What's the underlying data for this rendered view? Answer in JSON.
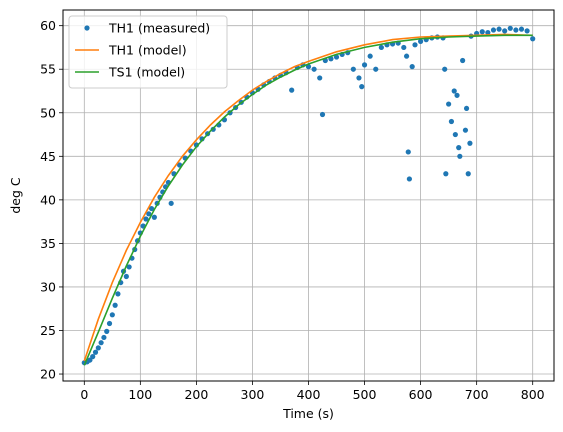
{
  "chart_data": {
    "type": "line",
    "xlabel": "Time (s)",
    "ylabel": "deg C",
    "xlim": [
      -38,
      838
    ],
    "ylim": [
      19.2,
      61.8
    ],
    "xticks": [
      0,
      100,
      200,
      300,
      400,
      500,
      600,
      700,
      800
    ],
    "yticks": [
      20,
      25,
      30,
      35,
      40,
      45,
      50,
      55,
      60
    ],
    "grid": true,
    "legend_position": "upper-left",
    "colors": {
      "measured": "#1f77b4",
      "th1_model": "#ff7f0e",
      "ts1_model": "#2ca02c",
      "grid": "#b0b0b0"
    },
    "series": [
      {
        "name": "TH1 (measured)",
        "style": "markers",
        "points": [
          [
            0,
            21.3
          ],
          [
            5,
            21.4
          ],
          [
            10,
            21.6
          ],
          [
            15,
            22.0
          ],
          [
            20,
            22.5
          ],
          [
            25,
            23.0
          ],
          [
            30,
            23.6
          ],
          [
            35,
            24.2
          ],
          [
            40,
            24.9
          ],
          [
            45,
            25.8
          ],
          [
            50,
            26.8
          ],
          [
            55,
            27.9
          ],
          [
            60,
            29.2
          ],
          [
            65,
            30.5
          ],
          [
            70,
            31.8
          ],
          [
            75,
            31.2
          ],
          [
            80,
            32.3
          ],
          [
            85,
            33.3
          ],
          [
            90,
            34.3
          ],
          [
            95,
            35.3
          ],
          [
            100,
            36.2
          ],
          [
            105,
            37.0
          ],
          [
            110,
            37.8
          ],
          [
            115,
            38.4
          ],
          [
            120,
            39.0
          ],
          [
            125,
            38.0
          ],
          [
            130,
            39.6
          ],
          [
            135,
            40.3
          ],
          [
            140,
            40.9
          ],
          [
            145,
            41.5
          ],
          [
            150,
            42.0
          ],
          [
            155,
            39.6
          ],
          [
            160,
            43.0
          ],
          [
            170,
            44.0
          ],
          [
            180,
            44.8
          ],
          [
            190,
            45.6
          ],
          [
            200,
            46.3
          ],
          [
            210,
            47.0
          ],
          [
            220,
            47.6
          ],
          [
            230,
            48.1
          ],
          [
            240,
            48.6
          ],
          [
            250,
            49.2
          ],
          [
            260,
            50.0
          ],
          [
            270,
            50.6
          ],
          [
            280,
            51.2
          ],
          [
            290,
            51.8
          ],
          [
            300,
            52.3
          ],
          [
            310,
            52.7
          ],
          [
            320,
            53.2
          ],
          [
            330,
            53.6
          ],
          [
            340,
            54.0
          ],
          [
            350,
            54.3
          ],
          [
            360,
            54.6
          ],
          [
            370,
            52.6
          ],
          [
            380,
            55.2
          ],
          [
            390,
            55.5
          ],
          [
            400,
            55.3
          ],
          [
            410,
            55.0
          ],
          [
            420,
            54.0
          ],
          [
            425,
            49.8
          ],
          [
            430,
            56.0
          ],
          [
            440,
            56.2
          ],
          [
            450,
            56.4
          ],
          [
            460,
            56.7
          ],
          [
            470,
            56.9
          ],
          [
            480,
            55.0
          ],
          [
            490,
            54.0
          ],
          [
            495,
            53.0
          ],
          [
            500,
            55.5
          ],
          [
            510,
            56.5
          ],
          [
            520,
            55.0
          ],
          [
            530,
            57.5
          ],
          [
            540,
            57.8
          ],
          [
            550,
            57.9
          ],
          [
            560,
            58.0
          ],
          [
            570,
            57.5
          ],
          [
            575,
            56.5
          ],
          [
            578,
            45.5
          ],
          [
            580,
            42.4
          ],
          [
            585,
            55.3
          ],
          [
            590,
            57.8
          ],
          [
            600,
            58.2
          ],
          [
            610,
            58.4
          ],
          [
            620,
            58.6
          ],
          [
            630,
            58.7
          ],
          [
            640,
            58.6
          ],
          [
            643,
            55.0
          ],
          [
            645,
            43.0
          ],
          [
            650,
            51.0
          ],
          [
            655,
            49.0
          ],
          [
            660,
            52.5
          ],
          [
            662,
            47.5
          ],
          [
            665,
            52.0
          ],
          [
            668,
            46.0
          ],
          [
            670,
            45.0
          ],
          [
            675,
            56.0
          ],
          [
            680,
            48.0
          ],
          [
            682,
            50.5
          ],
          [
            685,
            43.0
          ],
          [
            688,
            46.5
          ],
          [
            690,
            58.8
          ],
          [
            700,
            59.1
          ],
          [
            710,
            59.3
          ],
          [
            720,
            59.2
          ],
          [
            730,
            59.5
          ],
          [
            740,
            59.6
          ],
          [
            750,
            59.4
          ],
          [
            760,
            59.7
          ],
          [
            770,
            59.5
          ],
          [
            780,
            59.6
          ],
          [
            790,
            59.4
          ],
          [
            800,
            58.5
          ]
        ]
      },
      {
        "name": "TH1 (model)",
        "style": "line",
        "points": [
          [
            0,
            21.5
          ],
          [
            25,
            26.3
          ],
          [
            50,
            30.5
          ],
          [
            75,
            34.2
          ],
          [
            100,
            37.4
          ],
          [
            125,
            40.3
          ],
          [
            150,
            42.8
          ],
          [
            175,
            45.0
          ],
          [
            200,
            46.9
          ],
          [
            225,
            48.6
          ],
          [
            250,
            50.1
          ],
          [
            275,
            51.4
          ],
          [
            300,
            52.6
          ],
          [
            325,
            53.6
          ],
          [
            350,
            54.5
          ],
          [
            375,
            55.3
          ],
          [
            400,
            55.9
          ],
          [
            450,
            57.0
          ],
          [
            500,
            57.8
          ],
          [
            550,
            58.4
          ],
          [
            600,
            58.7
          ],
          [
            650,
            58.8
          ],
          [
            700,
            58.9
          ],
          [
            750,
            59.0
          ],
          [
            800,
            58.9
          ]
        ]
      },
      {
        "name": "TS1 (model)",
        "style": "line",
        "points": [
          [
            0,
            21.0
          ],
          [
            25,
            24.8
          ],
          [
            50,
            28.7
          ],
          [
            75,
            32.4
          ],
          [
            100,
            35.8
          ],
          [
            125,
            38.9
          ],
          [
            150,
            41.6
          ],
          [
            175,
            44.0
          ],
          [
            200,
            46.1
          ],
          [
            225,
            47.9
          ],
          [
            250,
            49.5
          ],
          [
            275,
            50.9
          ],
          [
            300,
            52.1
          ],
          [
            325,
            53.2
          ],
          [
            350,
            54.1
          ],
          [
            375,
            54.9
          ],
          [
            400,
            55.6
          ],
          [
            450,
            56.7
          ],
          [
            500,
            57.5
          ],
          [
            550,
            58.1
          ],
          [
            600,
            58.5
          ],
          [
            650,
            58.7
          ],
          [
            700,
            58.8
          ],
          [
            750,
            58.9
          ],
          [
            800,
            58.9
          ]
        ]
      }
    ]
  }
}
